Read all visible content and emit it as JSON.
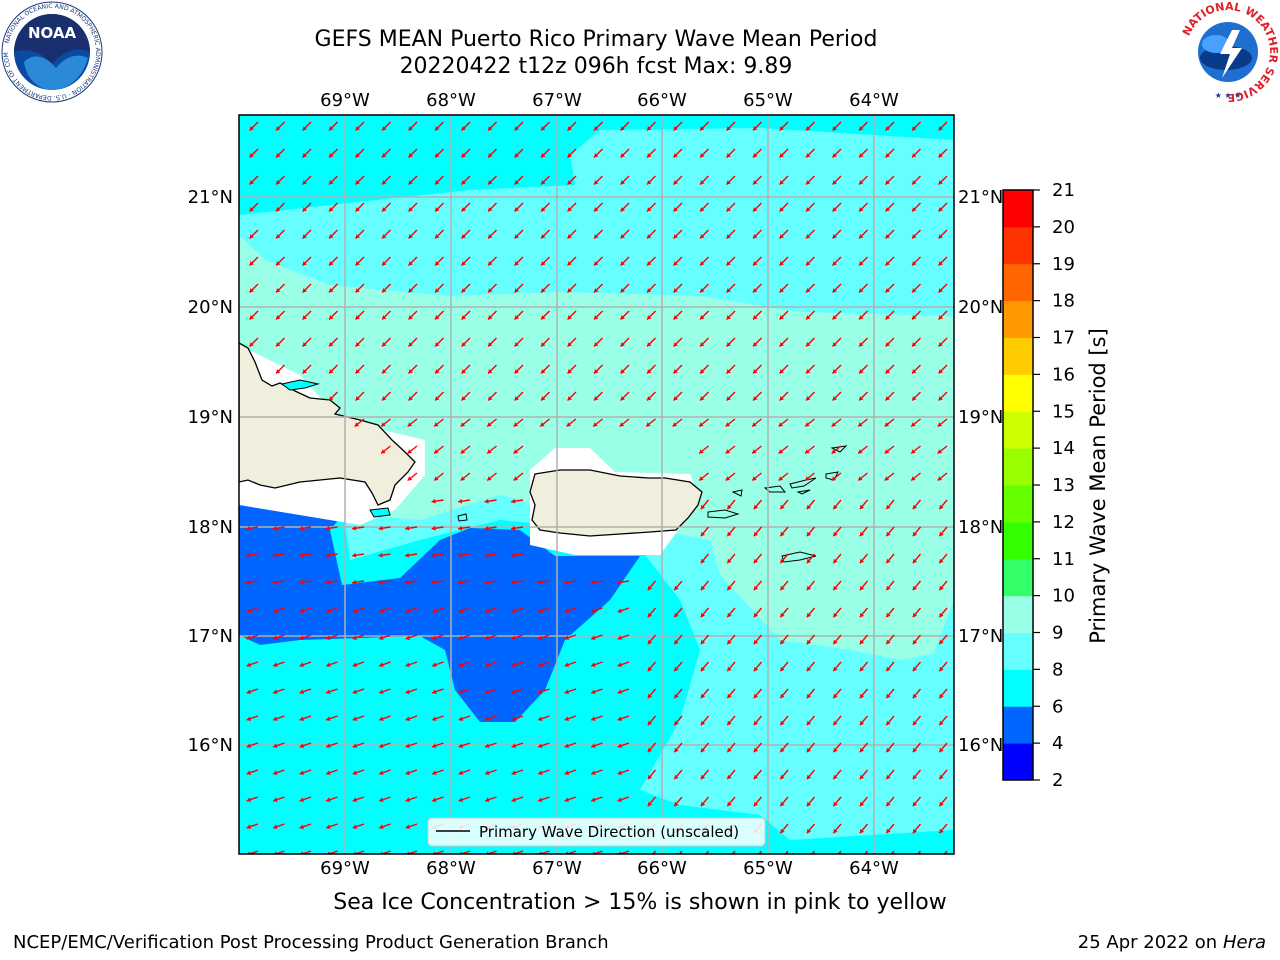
{
  "title_line1": "GEFS MEAN Puerto Rico Primary Wave Mean Period",
  "title_line2": "20220422 t12z 096h fcst   Max: 9.89",
  "longitude_labels": [
    "69°W",
    "68°W",
    "67°W",
    "66°W",
    "65°W",
    "64°W"
  ],
  "latitude_labels": [
    "21°N",
    "20°N",
    "19°N",
    "18°N",
    "17°N",
    "16°N"
  ],
  "legend_label": "Primary Wave Direction (unscaled)",
  "colorbar": {
    "label": "Primary Wave Mean Period [s]",
    "levels": [
      2,
      4,
      6,
      8,
      9,
      10,
      11,
      12,
      13,
      14,
      15,
      16,
      17,
      18,
      19,
      20,
      21
    ],
    "colors": [
      "#0000ff",
      "#0066ff",
      "#00ffff",
      "#66ffff",
      "#99ffe6",
      "#33ff66",
      "#33ff00",
      "#66ff00",
      "#99ff00",
      "#ccff00",
      "#ffff00",
      "#ffcc00",
      "#ff9900",
      "#ff6600",
      "#ff3300",
      "#ff0000"
    ]
  },
  "footnote": "Sea Ice Concentration > 15% is shown in pink to yellow",
  "credit_left": "NCEP/EMC/Verification Post Processing Product Generation Branch",
  "credit_date": "25 Apr 2022 on ",
  "credit_host": "Hera",
  "noaa_logo_text": "NOAA",
  "noaa_ring_text": "NATIONAL OCEANIC AND ATMOSPHERIC ADMINISTRATION · U.S. DEPARTMENT OF COMMERCE",
  "nws_ring_text": "NATIONAL WEATHER SERVICE",
  "colors": {
    "arrow": "#ff0000",
    "land": "#f0eedc",
    "grid": "#b0b0b0"
  }
}
